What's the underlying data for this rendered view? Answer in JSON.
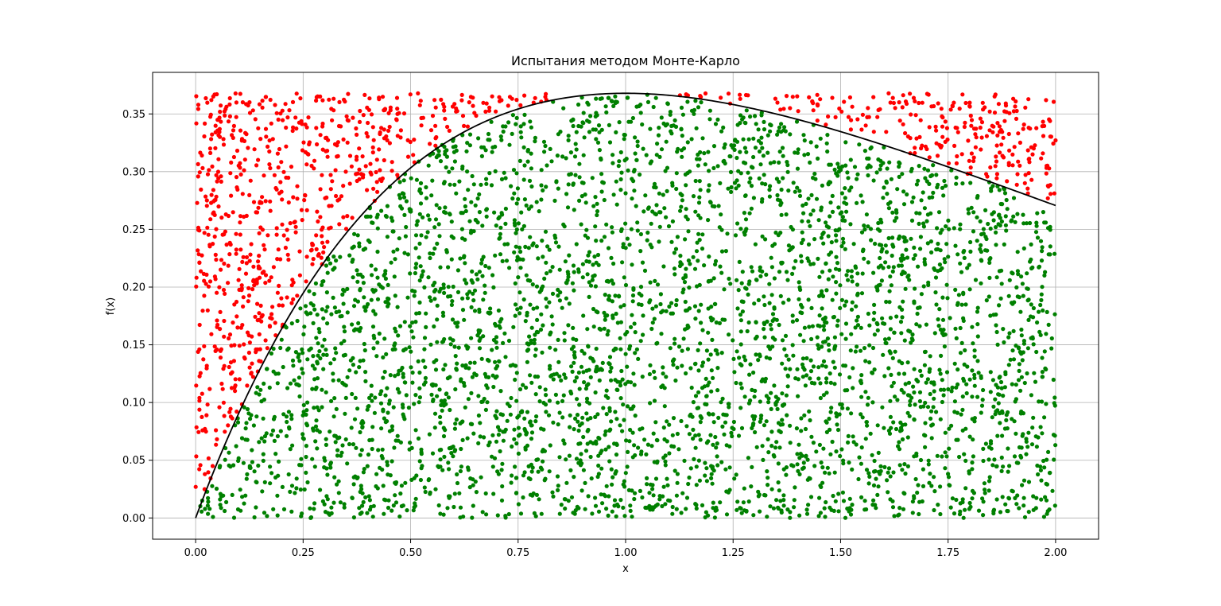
{
  "chart_data": {
    "type": "scatter",
    "title": "Испытания методом Монте-Карло",
    "xlabel": "x",
    "ylabel": "f(x)",
    "xlim": [
      -0.1,
      2.1
    ],
    "ylim": [
      -0.0184,
      0.386
    ],
    "grid": true,
    "curve": {
      "function": "x*exp(-x)",
      "x_range": [
        0,
        2
      ],
      "color": "#000000"
    },
    "x_ticks": [
      "0.00",
      "0.25",
      "0.50",
      "0.75",
      "1.00",
      "1.25",
      "1.50",
      "1.75",
      "2.00"
    ],
    "x_tick_values": [
      0,
      0.25,
      0.5,
      0.75,
      1.0,
      1.25,
      1.5,
      1.75,
      2.0
    ],
    "y_ticks": [
      "0.00",
      "0.05",
      "0.10",
      "0.15",
      "0.20",
      "0.25",
      "0.30",
      "0.35"
    ],
    "y_tick_values": [
      0,
      0.05,
      0.1,
      0.15,
      0.2,
      0.25,
      0.3,
      0.35
    ],
    "series": [
      {
        "color": "#008000",
        "rule": "y <= f(x)"
      },
      {
        "color": "#ff0000",
        "rule": "y > f(x)"
      }
    ],
    "sampling": {
      "n_points": 5000,
      "x_range": [
        0,
        2
      ],
      "y_range": [
        0,
        0.368
      ]
    }
  }
}
